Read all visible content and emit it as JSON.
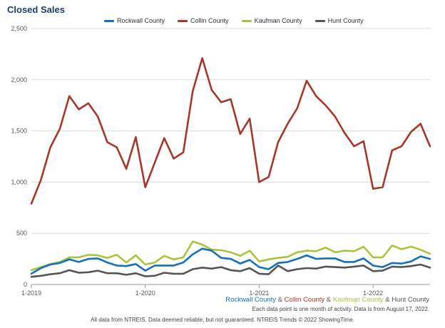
{
  "title": "Closed Sales",
  "legend": [
    {
      "name": "Rockwall County",
      "color": "#1372b9"
    },
    {
      "name": "Collin County",
      "color": "#a6372a"
    },
    {
      "name": "Kaufman County",
      "color": "#a9c43c"
    },
    {
      "name": "Hunt County",
      "color": "#555555"
    }
  ],
  "footer": {
    "subtitle": {
      "s1": "Rockwall County",
      "s2": "Collin County",
      "s3": "Kaufman County",
      "s4": "Hunt County",
      "amp": " & "
    },
    "note1": "Each data point is one month of activity. Data is from August 17, 2022.",
    "note2": "All data from NTREIS. Data deemed reliable, but not guaranteed. NTREIS Trends © 2022 ShowingTime."
  },
  "chart_data": {
    "type": "line",
    "title": "Closed Sales",
    "ylim": [
      0,
      2500
    ],
    "yticks": [
      0,
      500,
      1000,
      1500,
      2000,
      2500
    ],
    "ytick_labels": [
      "0",
      "500",
      "1,000",
      "1,500",
      "2,000",
      "2,500"
    ],
    "xtick_labels": [
      "1-2019",
      "1-2020",
      "1-2021",
      "1-2022"
    ],
    "x_months": [
      "1-2019",
      "2-2019",
      "3-2019",
      "4-2019",
      "5-2019",
      "6-2019",
      "7-2019",
      "8-2019",
      "9-2019",
      "10-2019",
      "11-2019",
      "12-2019",
      "1-2020",
      "2-2020",
      "3-2020",
      "4-2020",
      "5-2020",
      "6-2020",
      "7-2020",
      "8-2020",
      "9-2020",
      "10-2020",
      "11-2020",
      "12-2020",
      "1-2021",
      "2-2021",
      "3-2021",
      "4-2021",
      "5-2021",
      "6-2021",
      "7-2021",
      "8-2021",
      "9-2021",
      "10-2021",
      "11-2021",
      "12-2021",
      "1-2022",
      "2-2022",
      "3-2022",
      "4-2022",
      "5-2022",
      "6-2022",
      "7-2022"
    ],
    "grid": "horizontal",
    "legend_position": "top",
    "series": [
      {
        "name": "Rockwall County",
        "color": "#1372b9",
        "values": [
          105,
          160,
          195,
          210,
          245,
          220,
          250,
          255,
          215,
          185,
          180,
          200,
          135,
          185,
          185,
          185,
          215,
          295,
          350,
          330,
          260,
          250,
          205,
          240,
          170,
          150,
          210,
          220,
          250,
          285,
          250,
          255,
          255,
          220,
          220,
          255,
          185,
          170,
          210,
          205,
          225,
          275,
          250
        ]
      },
      {
        "name": "Collin County",
        "color": "#a6372a",
        "values": [
          790,
          1020,
          1340,
          1520,
          1840,
          1710,
          1770,
          1640,
          1390,
          1340,
          1130,
          1440,
          950,
          1190,
          1430,
          1230,
          1290,
          1890,
          2210,
          1900,
          1780,
          1810,
          1470,
          1620,
          1000,
          1050,
          1390,
          1570,
          1720,
          1990,
          1840,
          1750,
          1640,
          1480,
          1350,
          1400,
          935,
          950,
          1310,
          1350,
          1490,
          1570,
          1350
        ]
      },
      {
        "name": "Kaufman County",
        "color": "#a9c43c",
        "values": [
          140,
          170,
          200,
          220,
          265,
          265,
          290,
          285,
          260,
          290,
          215,
          285,
          195,
          215,
          280,
          245,
          265,
          420,
          390,
          340,
          335,
          315,
          280,
          330,
          225,
          245,
          260,
          270,
          315,
          330,
          325,
          360,
          315,
          330,
          325,
          370,
          265,
          265,
          380,
          345,
          370,
          340,
          300
        ]
      },
      {
        "name": "Hunt County",
        "color": "#555555",
        "values": [
          75,
          85,
          100,
          110,
          140,
          115,
          120,
          135,
          110,
          110,
          95,
          110,
          80,
          85,
          115,
          105,
          105,
          150,
          165,
          155,
          170,
          140,
          130,
          160,
          105,
          100,
          185,
          130,
          150,
          160,
          155,
          175,
          170,
          165,
          175,
          185,
          130,
          135,
          175,
          170,
          180,
          195,
          165
        ]
      }
    ]
  }
}
